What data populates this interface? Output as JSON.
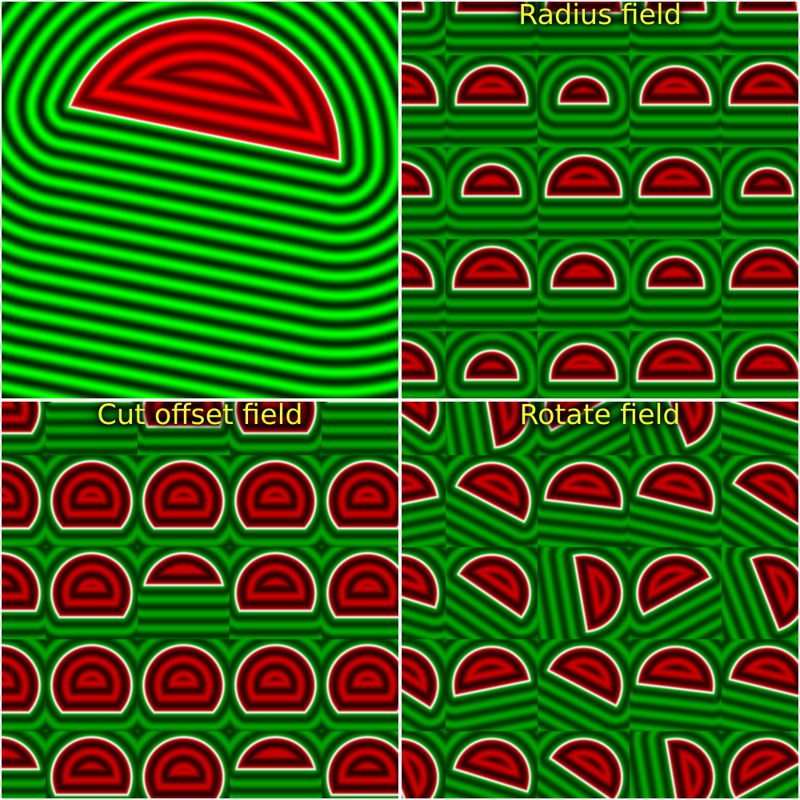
{
  "panels": {
    "main": {
      "caption": ""
    },
    "radius_field": {
      "caption": "Radius field"
    },
    "cut_offset_field": {
      "caption": "Cut offset field"
    },
    "rotate_field": {
      "caption": "Rotate field"
    }
  },
  "colors": {
    "background": "#ffffff",
    "inside_tone": "#ff0000",
    "outside_tone": "#00ff00",
    "outside_tone_tiled": "#008c00",
    "boundary": "#ffffff",
    "caption_text": "#f4ff2a"
  }
}
